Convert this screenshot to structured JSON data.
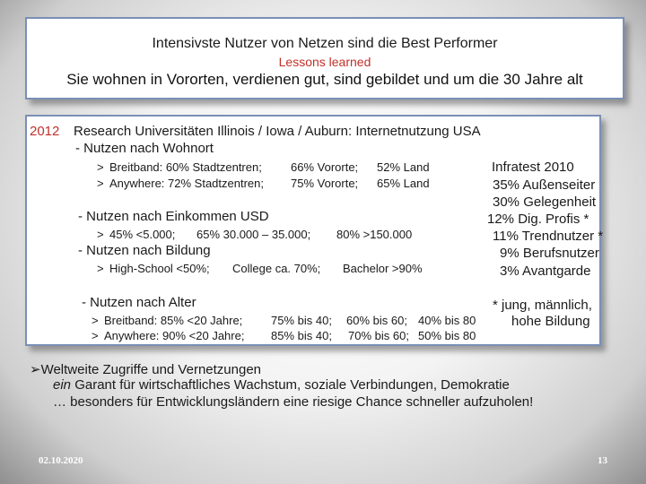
{
  "header": {
    "title": "Intensivste Nutzer von Netzen sind die Best Performer",
    "subtitle": "Lessons learned",
    "tagline": "Sie wohnen in Vororten, verdienen gut, sind gebildet und um die 30 Jahre alt"
  },
  "main": {
    "year": "2012",
    "heading": "Research Universitäten Illinois / Iowa / Auburn:  Internetnutzung USA",
    "wohnort": {
      "label": "-  Nutzen nach Wohnort",
      "r1": {
        "arrow": ">",
        "a": "Breitband:  60% Stadtzentren;",
        "b": "66% Vororte;",
        "c": "52% Land"
      },
      "r2": {
        "arrow": ">",
        "a": "Anywhere:  72% Stadtzentren;",
        "b": "75% Vororte;",
        "c": "65% Land"
      }
    },
    "einkommen": {
      "label": "-  Nutzen nach Einkommen USD",
      "r1": {
        "arrow": ">",
        "a": "45% <5.000;",
        "b": "65% 30.000 – 35.000;",
        "c": "80% >150.000"
      }
    },
    "bildung": {
      "label": "-  Nutzen nach Bildung",
      "r1": {
        "arrow": ">",
        "a": "High-School <50%;",
        "b": "College ca. 70%;",
        "c": "Bachelor >90%"
      }
    },
    "alter": {
      "label": "-  Nutzen nach Alter",
      "r1": {
        "arrow": ">",
        "a": "Breitband:  85% <20 Jahre;",
        "b": "75% bis 40;",
        "c": "60% bis 60;",
        "d": "40% bis 80"
      },
      "r2": {
        "arrow": ">",
        "a": "Anywhere:  90% <20 Jahre;",
        "b": "85% bis 40;",
        "c": "70% bis 60;",
        "d": "50% bis 80"
      }
    },
    "infratest": {
      "title": "Infratest 2010",
      "items": [
        "35% Außenseiter",
        "30% Gelegenheit",
        "12% Dig. Profis *",
        "11% Trendnutzer *",
        "9% Berufsnutzer",
        "3% Avantgarde"
      ],
      "note1": "*  jung, männlich,",
      "note2": "hohe Bildung"
    }
  },
  "bottom": {
    "line1": "Weltweite Zugriffe und Vernetzungen",
    "line2_em": "ein",
    "line2": " Garant für wirtschaftliches Wachstum, soziale Verbindungen, Demokratie",
    "line3": "… besonders für Entwicklungsländern eine riesige Chance schneller aufzuholen!"
  },
  "footer": {
    "date": "02.10.2020",
    "page": "13"
  }
}
